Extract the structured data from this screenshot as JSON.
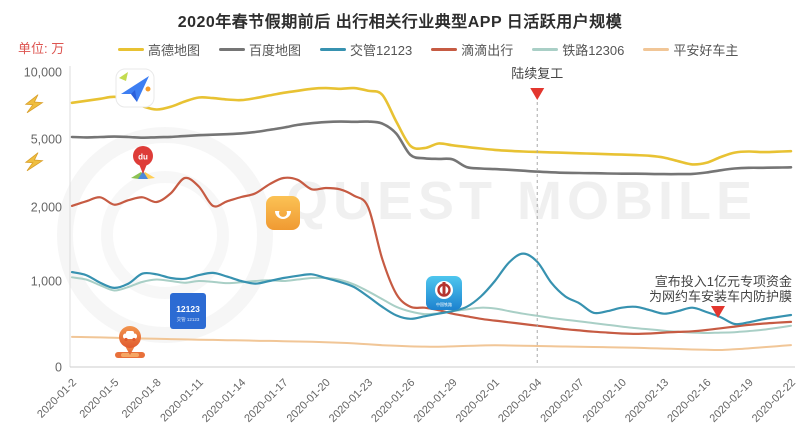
{
  "title": "2020年春节假期前后 出行相关行业典型APP 日活跃用户规模",
  "unit_label": "单位: 万",
  "watermark": "QUEST MOBILE",
  "annotations": {
    "resume_work": {
      "text": "陆续复工",
      "x_date": "2020-02-04"
    },
    "didi_fund": {
      "line1": "宣布投入1亿元专项资金",
      "line2": "为网约车安装车内防护膜"
    }
  },
  "y_axis": {
    "tick_values": [
      10000,
      5000,
      2000,
      1000,
      0
    ],
    "tick_labels": [
      "10,000",
      "5,000",
      "2,000",
      "1,000",
      "0"
    ]
  },
  "x_axis": {
    "tick_labels": [
      "2020-01-2",
      "2020-01-5",
      "2020-01-8",
      "2020-01-11",
      "2020-01-14",
      "2020-01-17",
      "2020-01-20",
      "2020-01-23",
      "2020-01-26",
      "2020-01-29",
      "2020-02-01",
      "2020-02-04",
      "2020-02-07",
      "2020-02-10",
      "2020-02-13",
      "2020-02-16",
      "2020-02-19",
      "2020-02-22"
    ]
  },
  "chart_data": {
    "type": "line",
    "title": "2020年春节假期前后 出行相关行业典型APP 日活跃用户规模",
    "ylabel": "单位: 万",
    "ylim": [
      0,
      10000
    ],
    "y_scale": "non-linear piecewise (ticks 0/1,000/2,000/5,000/10,000)",
    "legend_position": "top",
    "grid": false,
    "x": [
      "2020-01-02",
      "2020-01-03",
      "2020-01-04",
      "2020-01-05",
      "2020-01-06",
      "2020-01-07",
      "2020-01-08",
      "2020-01-09",
      "2020-01-10",
      "2020-01-11",
      "2020-01-12",
      "2020-01-13",
      "2020-01-14",
      "2020-01-15",
      "2020-01-16",
      "2020-01-17",
      "2020-01-18",
      "2020-01-19",
      "2020-01-20",
      "2020-01-21",
      "2020-01-22",
      "2020-01-23",
      "2020-01-24",
      "2020-01-25",
      "2020-01-26",
      "2020-01-27",
      "2020-01-28",
      "2020-01-29",
      "2020-01-30",
      "2020-01-31",
      "2020-02-01",
      "2020-02-02",
      "2020-02-03",
      "2020-02-04",
      "2020-02-05",
      "2020-02-06",
      "2020-02-07",
      "2020-02-08",
      "2020-02-09",
      "2020-02-10",
      "2020-02-11",
      "2020-02-12",
      "2020-02-13",
      "2020-02-14",
      "2020-02-15",
      "2020-02-16",
      "2020-02-17",
      "2020-02-18",
      "2020-02-19",
      "2020-02-20",
      "2020-02-21",
      "2020-02-22"
    ],
    "series": [
      {
        "key": "amap",
        "name": "高德地图",
        "color": "#e8c233",
        "icon": "amap-icon",
        "values": [
          7700,
          7850,
          8000,
          8150,
          7900,
          7450,
          7200,
          7400,
          7800,
          8100,
          8050,
          7950,
          7900,
          8050,
          8250,
          8450,
          8600,
          8750,
          8800,
          8750,
          8800,
          8600,
          8300,
          6300,
          4700,
          4600,
          4800,
          4720,
          4650,
          4580,
          4520,
          4480,
          4450,
          4430,
          4410,
          4390,
          4370,
          4350,
          4330,
          4310,
          4290,
          4260,
          4180,
          4020,
          3880,
          3950,
          4200,
          4400,
          4450,
          4420,
          4440,
          4460
        ]
      },
      {
        "key": "baidu-map",
        "name": "百度地图",
        "color": "#757575",
        "icon": "baidu-maps-icon",
        "values": [
          5150,
          5120,
          5150,
          5180,
          5150,
          5100,
          5130,
          5160,
          5220,
          5280,
          5320,
          5360,
          5420,
          5520,
          5680,
          5850,
          6050,
          6180,
          6260,
          6300,
          6280,
          6300,
          6150,
          5400,
          4300,
          4150,
          4120,
          4100,
          3760,
          3700,
          3670,
          3640,
          3600,
          3560,
          3530,
          3510,
          3500,
          3490,
          3480,
          3470,
          3470,
          3460,
          3450,
          3450,
          3460,
          3520,
          3620,
          3700,
          3730,
          3730,
          3740,
          3750
        ]
      },
      {
        "key": "jiaoguan-12123",
        "name": "交管12123",
        "color": "#3792b0",
        "icon": "jiaoguan-12123-icon",
        "values": [
          1120,
          1080,
          980,
          920,
          970,
          1100,
          1090,
          1040,
          1030,
          1080,
          1110,
          1060,
          1000,
          970,
          1000,
          1040,
          1070,
          1090,
          1040,
          990,
          930,
          820,
          700,
          600,
          560,
          590,
          620,
          650,
          700,
          820,
          1000,
          1250,
          1370,
          1260,
          980,
          820,
          740,
          630,
          650,
          690,
          700,
          660,
          620,
          650,
          690,
          640,
          580,
          500,
          520,
          555,
          580,
          605
        ]
      },
      {
        "key": "didi",
        "name": "滴滴出行",
        "color": "#c65b43",
        "icon": "didi-icon",
        "values": [
          2050,
          2250,
          2430,
          2100,
          2300,
          2430,
          2220,
          2600,
          3280,
          2900,
          2050,
          2250,
          2440,
          2600,
          3000,
          3280,
          3200,
          2780,
          2840,
          2780,
          2500,
          2000,
          1300,
          850,
          700,
          690,
          660,
          620,
          590,
          560,
          540,
          520,
          500,
          480,
          460,
          440,
          425,
          410,
          400,
          390,
          385,
          390,
          400,
          408,
          415,
          430,
          450,
          470,
          490,
          505,
          515,
          525
        ]
      },
      {
        "key": "railway-12306",
        "name": "铁路12306",
        "color": "#a9cfc6",
        "icon": "railway-12306-icon",
        "values": [
          1050,
          1020,
          950,
          890,
          930,
          990,
          1020,
          1000,
          980,
          1000,
          990,
          975,
          985,
          1000,
          1010,
          1000,
          1020,
          1040,
          1040,
          1015,
          960,
          880,
          790,
          700,
          645,
          615,
          625,
          650,
          670,
          690,
          680,
          650,
          620,
          595,
          570,
          550,
          530,
          510,
          490,
          470,
          452,
          437,
          422,
          410,
          400,
          395,
          400,
          405,
          418,
          432,
          455,
          480
        ]
      },
      {
        "key": "pingan-haochezhu",
        "name": "平安好车主",
        "color": "#f1c697",
        "icon": "pingan-icon",
        "values": [
          350,
          348,
          344,
          340,
          335,
          331,
          328,
          325,
          321,
          318,
          315,
          312,
          309,
          306,
          303,
          300,
          297,
          293,
          288,
          282,
          274,
          264,
          254,
          246,
          240,
          237,
          236,
          240,
          245,
          250,
          252,
          250,
          247,
          244,
          241,
          238,
          236,
          233,
          230,
          227,
          223,
          219,
          214,
          209,
          204,
          200,
          198,
          206,
          216,
          229,
          242,
          255
        ]
      }
    ]
  }
}
